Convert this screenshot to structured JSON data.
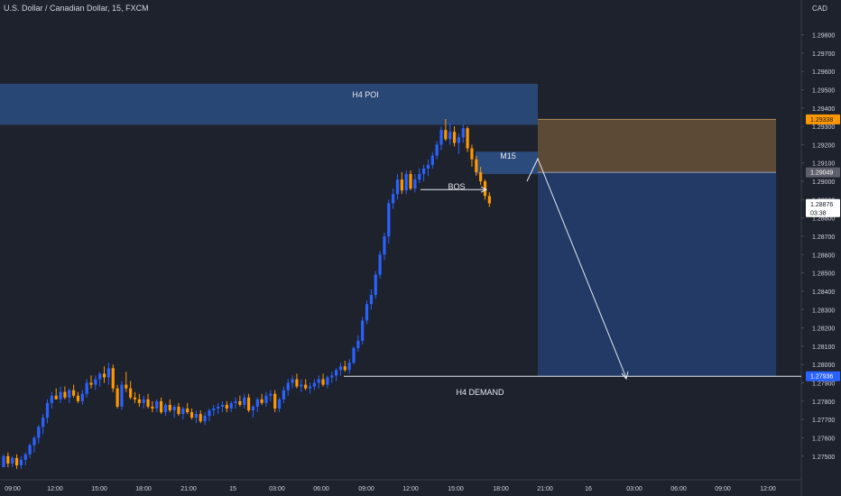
{
  "header": {
    "title": "U.S. Dollar / Canadian Dollar, 15, FXCM",
    "currency": "CAD"
  },
  "colors": {
    "bull": "#2962ff",
    "bear": "#ff9800",
    "background": "#1e222d",
    "zone": "#2a4b7c",
    "supply": "#5c4a37",
    "demand_box": "#233a66",
    "text": "#d1d4dc"
  },
  "chart_data": {
    "type": "candlestick",
    "title": "U.S. Dollar / Canadian Dollar, 15, FXCM",
    "y_axis": {
      "unit": "CAD",
      "ylim": [
        1.2744,
        1.29906
      ],
      "ticks": [
        "1.29800",
        "1.29700",
        "1.29600",
        "1.29500",
        "1.29400",
        "1.29300",
        "1.29200",
        "1.29100",
        "1.29000",
        "1.28900",
        "1.28800",
        "1.28700",
        "1.28600",
        "1.28500",
        "1.28400",
        "1.28300",
        "1.28200",
        "1.28100",
        "1.28000",
        "1.27900",
        "1.27800",
        "1.27700",
        "1.27600",
        "1.27500"
      ]
    },
    "x_axis": {
      "ticks": [
        "09:00",
        "12:00",
        "15:00",
        "18:00",
        "21:00",
        "15",
        "03:00",
        "06:00",
        "09:00",
        "12:00",
        "15:00",
        "18:00",
        "21:00",
        "16",
        "03:00",
        "06:00",
        "09:00",
        "12:00"
      ]
    },
    "price_labels": [
      {
        "text": "1.29338",
        "value": 1.29338,
        "style": "supply"
      },
      {
        "text": "1.29049",
        "value": 1.29049,
        "style": "gray"
      },
      {
        "text": "1.28876",
        "sub": "03:38",
        "value": 1.28876,
        "style": "current"
      },
      {
        "text": "1.27936",
        "value": 1.27936,
        "style": "demand"
      }
    ],
    "annotations": [
      "H4 POI",
      "M15",
      "BOS",
      "H4 DEMAND"
    ],
    "zones": [
      {
        "name": "H4 POI",
        "from": 1.29308,
        "to": 1.29532
      },
      {
        "name": "M15",
        "from": 1.2904,
        "to": 1.29162
      },
      {
        "name": "supply-box",
        "from": 1.29049,
        "to": 1.29338
      },
      {
        "name": "target-box",
        "from": 1.27936,
        "to": 1.29049
      },
      {
        "name": "H4 DEMAND",
        "level": 1.27936
      },
      {
        "name": "BOS",
        "level": 1.28955
      }
    ],
    "candles": [
      [
        1.2744,
        1.2751,
        1.2744,
        1.275
      ],
      [
        1.275,
        1.2752,
        1.2744,
        1.2746
      ],
      [
        1.2746,
        1.275,
        1.2744,
        1.2749
      ],
      [
        1.2749,
        1.2751,
        1.2743,
        1.2745
      ],
      [
        1.2745,
        1.275,
        1.2743,
        1.2748
      ],
      [
        1.2748,
        1.2752,
        1.2745,
        1.2751
      ],
      [
        1.2751,
        1.2757,
        1.2749,
        1.2756
      ],
      [
        1.2756,
        1.2761,
        1.2752,
        1.276
      ],
      [
        1.276,
        1.2767,
        1.2757,
        1.2766
      ],
      [
        1.2766,
        1.2773,
        1.2762,
        1.2771
      ],
      [
        1.2771,
        1.2781,
        1.2768,
        1.2779
      ],
      [
        1.2779,
        1.2785,
        1.2776,
        1.2783
      ],
      [
        1.2783,
        1.2787,
        1.2781,
        1.2781
      ],
      [
        1.2781,
        1.2788,
        1.2779,
        1.2785
      ],
      [
        1.2785,
        1.2788,
        1.2781,
        1.2782
      ],
      [
        1.2782,
        1.2787,
        1.2779,
        1.2786
      ],
      [
        1.2786,
        1.2789,
        1.2782,
        1.2783
      ],
      [
        1.2783,
        1.2785,
        1.2779,
        1.278
      ],
      [
        1.278,
        1.2786,
        1.2778,
        1.2784
      ],
      [
        1.2784,
        1.2792,
        1.2782,
        1.279
      ],
      [
        1.279,
        1.2794,
        1.2787,
        1.2789
      ],
      [
        1.2789,
        1.2794,
        1.2786,
        1.2792
      ],
      [
        1.2792,
        1.2796,
        1.2788,
        1.2795
      ],
      [
        1.2795,
        1.2799,
        1.279,
        1.2793
      ],
      [
        1.2793,
        1.2801,
        1.2789,
        1.2798
      ],
      [
        1.2798,
        1.28,
        1.2785,
        1.2787
      ],
      [
        1.2787,
        1.2789,
        1.2776,
        1.2777
      ],
      [
        1.2777,
        1.2791,
        1.2775,
        1.2789
      ],
      [
        1.2789,
        1.2796,
        1.2785,
        1.2787
      ],
      [
        1.2787,
        1.2791,
        1.2781,
        1.2782
      ],
      [
        1.2782,
        1.2785,
        1.2779,
        1.2781
      ],
      [
        1.2781,
        1.2784,
        1.2777,
        1.2779
      ],
      [
        1.2779,
        1.2783,
        1.2776,
        1.2781
      ],
      [
        1.2781,
        1.2784,
        1.2776,
        1.2777
      ],
      [
        1.2777,
        1.278,
        1.2774,
        1.2776
      ],
      [
        1.2776,
        1.2781,
        1.2774,
        1.278
      ],
      [
        1.278,
        1.2782,
        1.2773,
        1.2774
      ],
      [
        1.2774,
        1.2779,
        1.2772,
        1.2778
      ],
      [
        1.2778,
        1.2781,
        1.2774,
        1.2775
      ],
      [
        1.2775,
        1.2778,
        1.2771,
        1.2777
      ],
      [
        1.2777,
        1.2779,
        1.2772,
        1.2773
      ],
      [
        1.2773,
        1.2777,
        1.277,
        1.2776
      ],
      [
        1.2776,
        1.2779,
        1.2773,
        1.2774
      ],
      [
        1.2774,
        1.2776,
        1.277,
        1.2771
      ],
      [
        1.2771,
        1.2775,
        1.2768,
        1.2773
      ],
      [
        1.2773,
        1.2775,
        1.2768,
        1.2769
      ],
      [
        1.2769,
        1.2774,
        1.2767,
        1.2772
      ],
      [
        1.2772,
        1.2776,
        1.2769,
        1.2775
      ],
      [
        1.2775,
        1.2778,
        1.2772,
        1.2776
      ],
      [
        1.2776,
        1.2779,
        1.2773,
        1.2777
      ],
      [
        1.2777,
        1.278,
        1.2774,
        1.2778
      ],
      [
        1.2778,
        1.278,
        1.2774,
        1.2776
      ],
      [
        1.2776,
        1.278,
        1.2774,
        1.2779
      ],
      [
        1.2779,
        1.2782,
        1.2776,
        1.278
      ],
      [
        1.278,
        1.2783,
        1.2777,
        1.2778
      ],
      [
        1.2778,
        1.2784,
        1.2776,
        1.2782
      ],
      [
        1.2782,
        1.2784,
        1.2774,
        1.2775
      ],
      [
        1.2775,
        1.2778,
        1.2771,
        1.2777
      ],
      [
        1.2777,
        1.2782,
        1.2774,
        1.2781
      ],
      [
        1.2781,
        1.2784,
        1.2778,
        1.2779
      ],
      [
        1.2779,
        1.2785,
        1.2777,
        1.2783
      ],
      [
        1.2783,
        1.2786,
        1.278,
        1.2784
      ],
      [
        1.2784,
        1.2786,
        1.2774,
        1.2776
      ],
      [
        1.2776,
        1.2782,
        1.2774,
        1.2781
      ],
      [
        1.2781,
        1.2788,
        1.2779,
        1.2786
      ],
      [
        1.2786,
        1.2792,
        1.2783,
        1.279
      ],
      [
        1.279,
        1.2794,
        1.2787,
        1.2792
      ],
      [
        1.2792,
        1.2795,
        1.2787,
        1.2788
      ],
      [
        1.2788,
        1.2792,
        1.2785,
        1.2789
      ],
      [
        1.2789,
        1.2792,
        1.2786,
        1.2787
      ],
      [
        1.2787,
        1.279,
        1.2784,
        1.2788
      ],
      [
        1.2788,
        1.2792,
        1.2786,
        1.279
      ],
      [
        1.279,
        1.2794,
        1.2787,
        1.2792
      ],
      [
        1.2792,
        1.2795,
        1.2788,
        1.2789
      ],
      [
        1.2789,
        1.2794,
        1.2787,
        1.2793
      ],
      [
        1.2793,
        1.2796,
        1.279,
        1.2794
      ],
      [
        1.2794,
        1.2798,
        1.2791,
        1.2797
      ],
      [
        1.2797,
        1.2801,
        1.2794,
        1.2799
      ],
      [
        1.2799,
        1.2802,
        1.2796,
        1.2797
      ],
      [
        1.2797,
        1.2803,
        1.2795,
        1.2801
      ],
      [
        1.2801,
        1.281,
        1.28,
        1.2809
      ],
      [
        1.2809,
        1.2816,
        1.2807,
        1.2813
      ],
      [
        1.2813,
        1.2826,
        1.2811,
        1.2824
      ],
      [
        1.2824,
        1.2835,
        1.2822,
        1.2833
      ],
      [
        1.2833,
        1.2841,
        1.283,
        1.2838
      ],
      [
        1.2838,
        1.2851,
        1.2836,
        1.2849
      ],
      [
        1.2849,
        1.2862,
        1.2847,
        1.286
      ],
      [
        1.286,
        1.2872,
        1.2857,
        1.287
      ],
      [
        1.287,
        1.289,
        1.2866,
        1.2888
      ],
      [
        1.2888,
        1.2896,
        1.2885,
        1.2893
      ],
      [
        1.2893,
        1.2904,
        1.289,
        1.2901
      ],
      [
        1.2901,
        1.2905,
        1.2893,
        1.2895
      ],
      [
        1.2895,
        1.2906,
        1.2893,
        1.2904
      ],
      [
        1.2904,
        1.2906,
        1.2895,
        1.2896
      ],
      [
        1.2896,
        1.2904,
        1.2894,
        1.2901
      ],
      [
        1.2901,
        1.2907,
        1.2899,
        1.2904
      ],
      [
        1.2904,
        1.2909,
        1.29,
        1.2907
      ],
      [
        1.2907,
        1.2912,
        1.2903,
        1.2909
      ],
      [
        1.2909,
        1.2916,
        1.2907,
        1.2914
      ],
      [
        1.2914,
        1.2922,
        1.2912,
        1.292
      ],
      [
        1.292,
        1.293,
        1.2917,
        1.2928
      ],
      [
        1.2928,
        1.2934,
        1.2922,
        1.2923
      ],
      [
        1.2923,
        1.2932,
        1.292,
        1.2927
      ],
      [
        1.2927,
        1.293,
        1.2919,
        1.2921
      ],
      [
        1.2921,
        1.2926,
        1.2915,
        1.2924
      ],
      [
        1.2924,
        1.2931,
        1.2921,
        1.2929
      ],
      [
        1.2929,
        1.293,
        1.2916,
        1.2918
      ],
      [
        1.2918,
        1.292,
        1.2908,
        1.2912
      ],
      [
        1.2912,
        1.2914,
        1.2903,
        1.2905
      ],
      [
        1.2905,
        1.2908,
        1.2898,
        1.29
      ],
      [
        1.29,
        1.2901,
        1.289,
        1.2892
      ],
      [
        1.2892,
        1.2894,
        1.2886,
        1.2888
      ]
    ]
  }
}
